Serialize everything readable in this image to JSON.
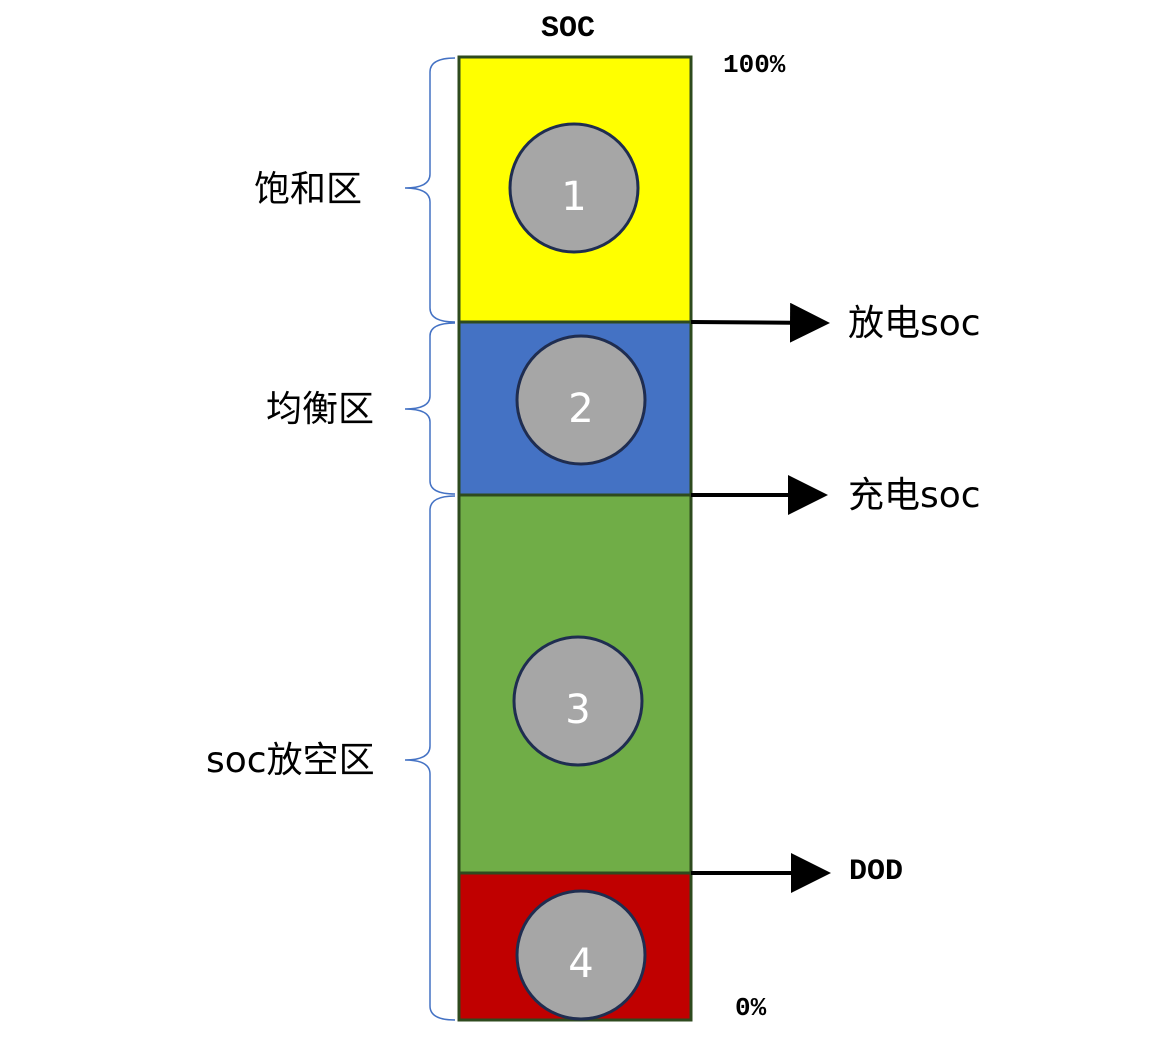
{
  "title": "SOC",
  "top_percent": "100%",
  "bottom_percent": "0%",
  "zones": [
    {
      "number": "1",
      "color": "#ffff00"
    },
    {
      "number": "2",
      "color": "#4472c4"
    },
    {
      "number": "3",
      "color": "#70ad47"
    },
    {
      "number": "4",
      "color": "#c00000"
    }
  ],
  "region_labels": {
    "saturation": "饱和区",
    "balance": "均衡区",
    "discharge_empty": "soc放空区"
  },
  "arrow_labels": {
    "discharge_soc": "放电soc",
    "charge_soc": "充电soc",
    "dod": "DOD"
  },
  "colors": {
    "border": "#2e4a1e",
    "circle_fill": "#a6a6a6",
    "circle_stroke": "#1f2d50",
    "brace": "#4472c4"
  }
}
